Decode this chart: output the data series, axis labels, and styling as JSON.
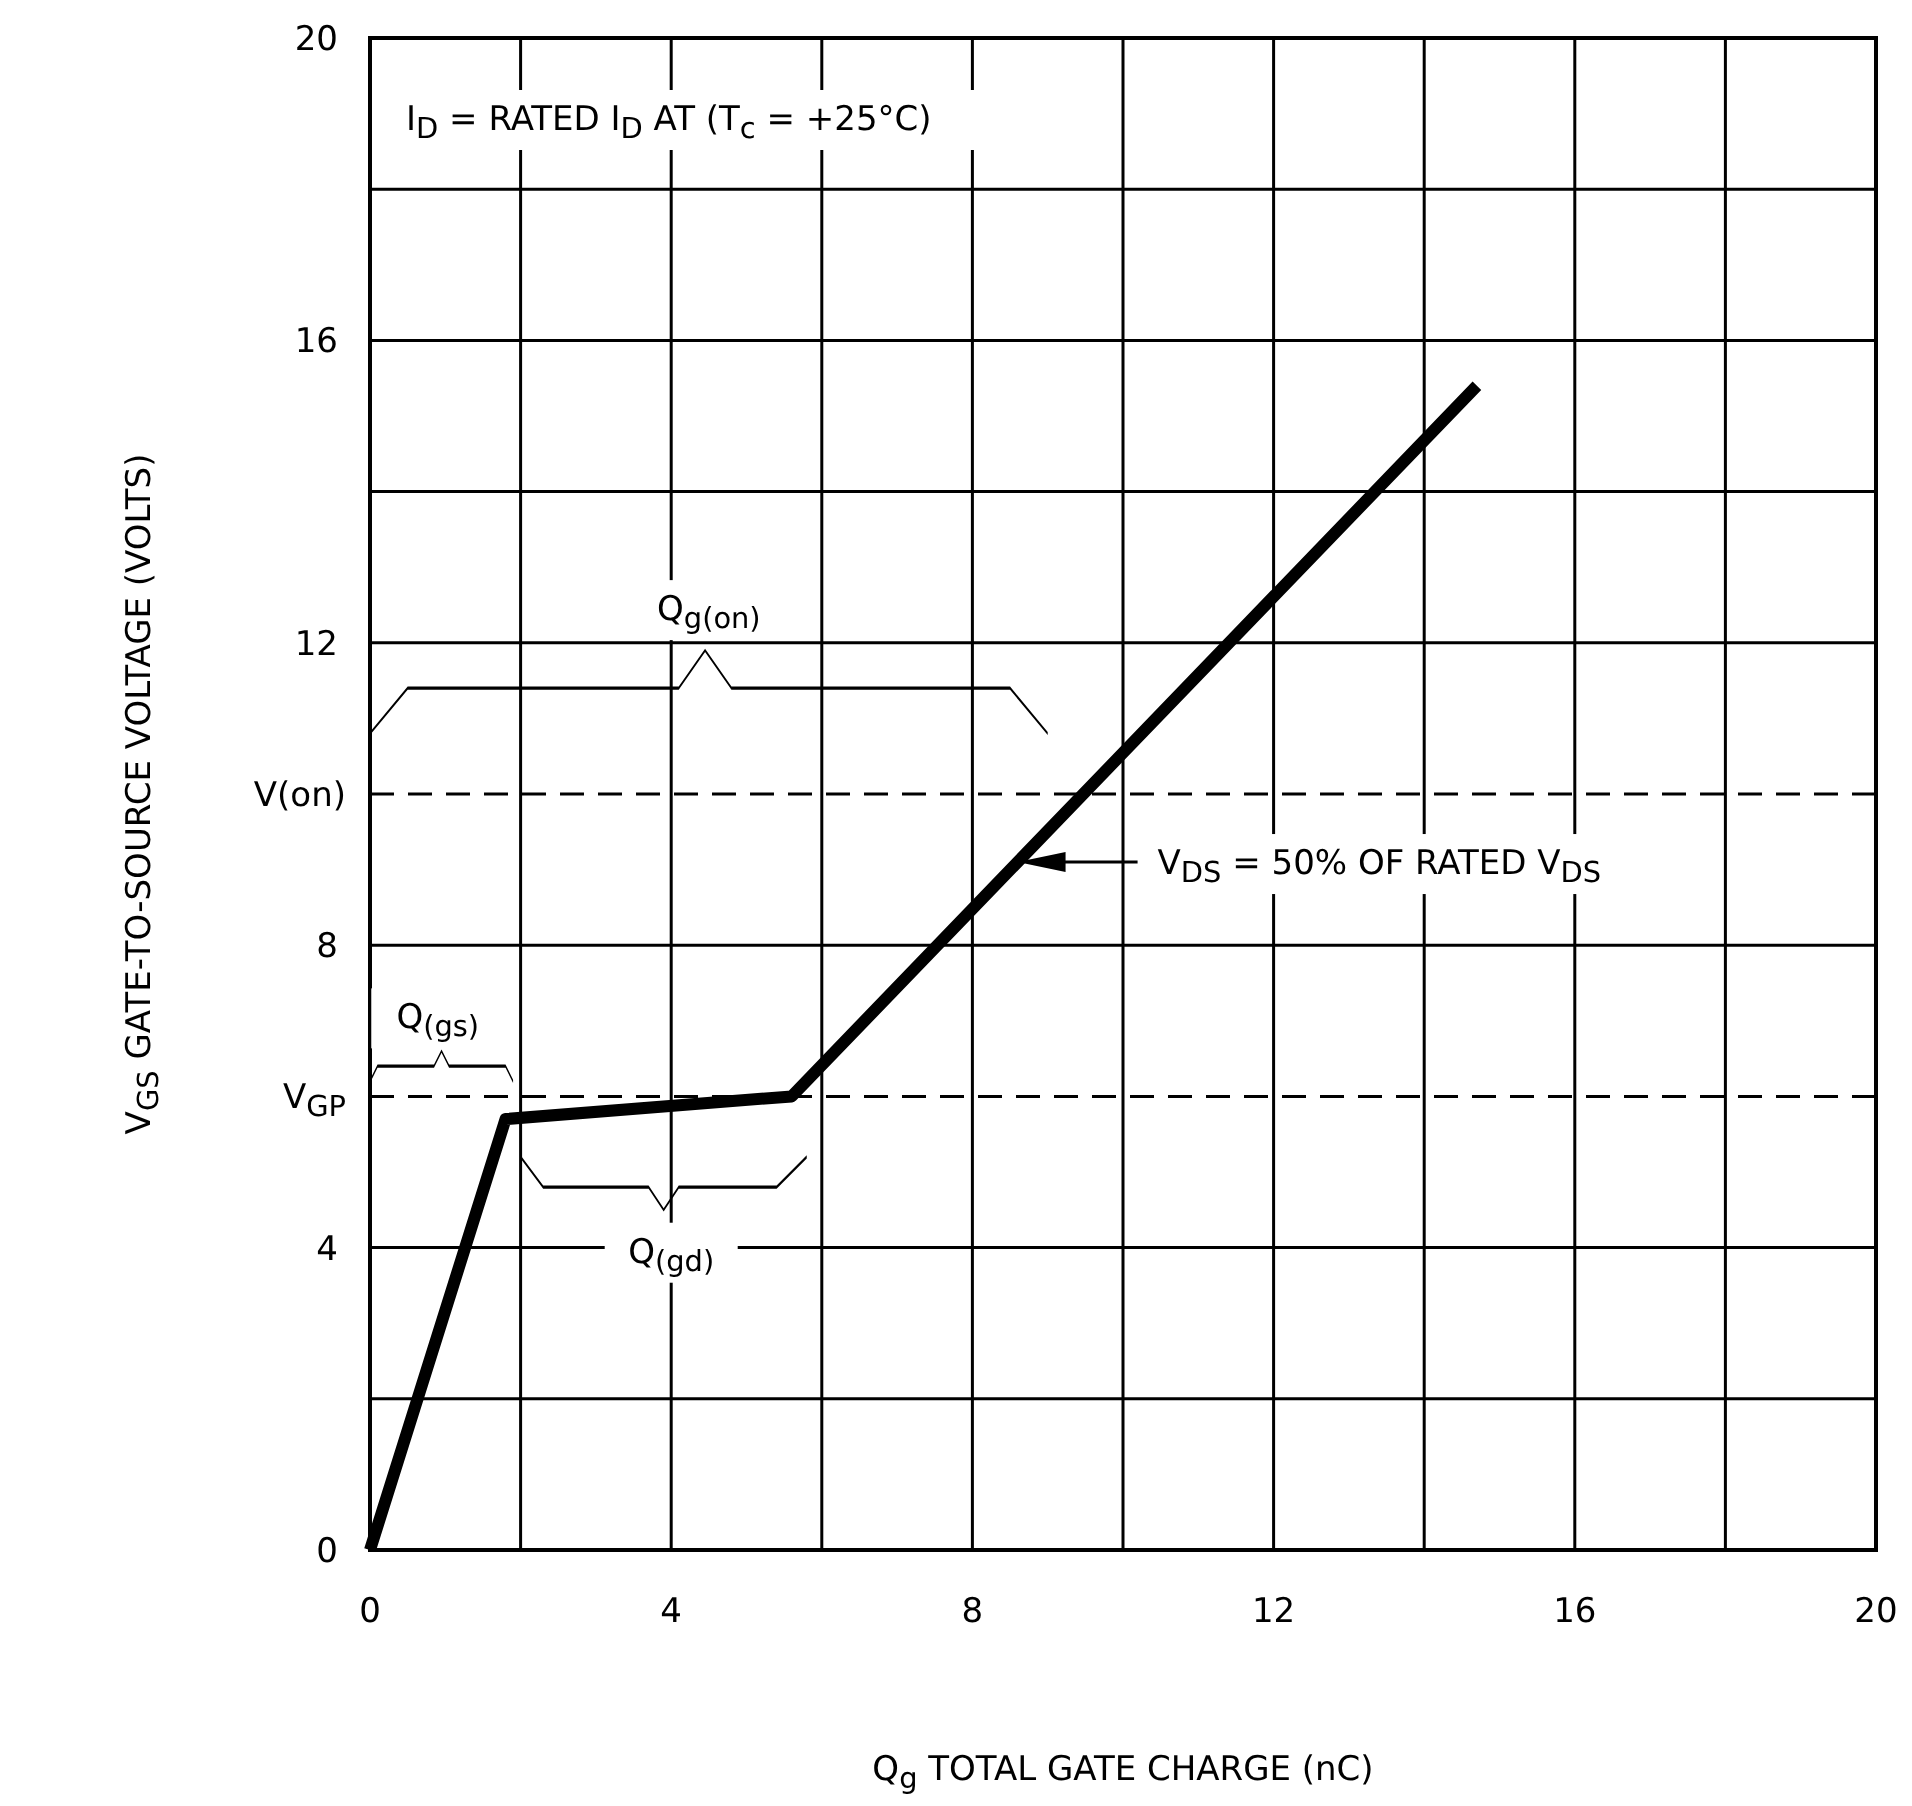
{
  "chart_data": {
    "type": "line",
    "xlabel": "Q$_{g}$ TOTAL GATE CHARGE (nC)",
    "ylabel": "V$_{GS}$ GATE-TO-SOURCE VOLTAGE (VOLTS)",
    "x": [
      0,
      1.8,
      5.6,
      14.7
    ],
    "series": [
      {
        "color": "#000000",
        "values": [
          0,
          5.7,
          6.0,
          15.4
        ]
      }
    ],
    "xlim": [
      0,
      20
    ],
    "ylim": [
      0,
      20
    ],
    "xticks": [
      0,
      {
        "value": 2,
        "label": null
      },
      4,
      {
        "value": 6,
        "label": null
      },
      8,
      {
        "value": 10,
        "label": null
      },
      12,
      {
        "value": 14,
        "label": null
      },
      16,
      {
        "value": 18,
        "label": null
      },
      20
    ],
    "yticks": [
      0,
      {
        "value": 2,
        "label": null
      },
      4,
      8,
      12,
      {
        "value": 14,
        "label": null
      },
      16,
      {
        "value": 18,
        "label": null
      },
      20
    ],
    "grid": true,
    "marker": "none",
    "line_style": "solid",
    "ref_lines": [
      {
        "axis": "y",
        "value": 10,
        "label": "V(on)",
        "line_style": "dashed"
      },
      {
        "axis": "y",
        "value": 6,
        "label": "V$_{GP}$",
        "line_style": "dashed"
      }
    ],
    "annotations": [
      "I$_{D}$ = RATED I$_{D}$ AT (T$_{c}$ = +25°C)",
      "Q$_{g(on)}$",
      "Q$_{(gs)}$",
      "Q$_{(gd)}$",
      "V$_{DS}$ = 50% OF RATED V$_{DS}$"
    ]
  }
}
